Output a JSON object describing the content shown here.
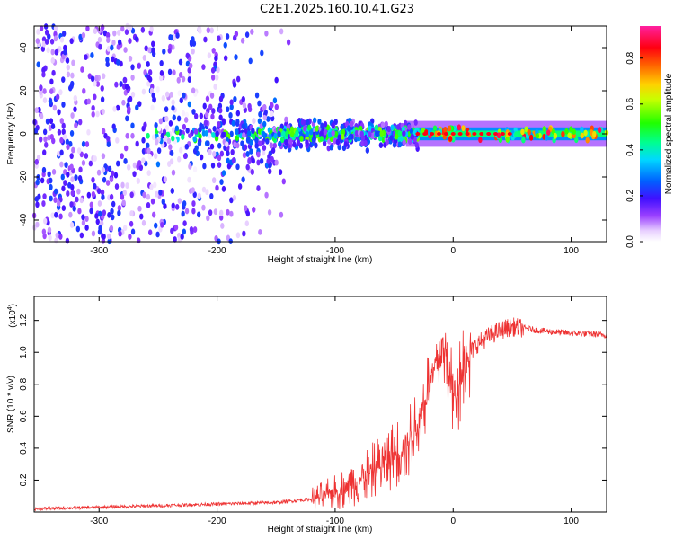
{
  "title": "C2E1.2025.160.10.41.G23",
  "chart_data": [
    {
      "type": "heatmap",
      "xlabel": "Height of straight line (km)",
      "ylabel": "Frequency (Hz)",
      "xlim": [
        -355,
        130
      ],
      "ylim": [
        -50,
        50
      ],
      "x_ticks": [
        "-300",
        "-200",
        "-100",
        "0",
        "100"
      ],
      "y_ticks": [
        "40",
        "20",
        "0",
        "-20",
        "-40"
      ],
      "colorbar": {
        "label": "Normalized spectral amplitude",
        "range": [
          0.0,
          0.94
        ],
        "ticks": [
          "0.0",
          "0.2",
          "0.4",
          "0.6",
          "0.8"
        ],
        "colormap": "rainbow (white, violet, blue, cyan, green, yellow, red, magenta)"
      },
      "features": [
        {
          "x_range": [
            -355,
            -170
          ],
          "freq_range": [
            -50,
            50
          ],
          "amplitude": "0.05-0.25",
          "pattern": "scattered broadband noise"
        },
        {
          "x_range": [
            -170,
            -30
          ],
          "freq_range": [
            -8,
            8
          ],
          "amplitude": "0.1-0.5",
          "pattern": "noisy band centered near 0 Hz"
        },
        {
          "x_range": [
            -30,
            130
          ],
          "freq_range": [
            -3,
            3
          ],
          "amplitude": "0.4-0.9",
          "pattern": "steady narrow line at 0 Hz"
        }
      ],
      "grid": false
    },
    {
      "type": "line",
      "xlabel": "Height of straight line (km)",
      "ylabel": "SNR (10 * v/v)",
      "y_multiplier": "(x10",
      "y_multiplier_exp": "4",
      "y_multiplier_close": ")",
      "xlim": [
        -355,
        130
      ],
      "ylim": [
        0,
        1.35
      ],
      "x_ticks": [
        "-300",
        "-200",
        "-100",
        "0",
        "100"
      ],
      "y_ticks": [
        "1.2",
        "1.0",
        "0.8",
        "0.6",
        "0.4",
        "0.2"
      ],
      "series": [
        {
          "color": "#ee3333",
          "x": [
            -355,
            -300,
            -250,
            -200,
            -150,
            -120,
            -100,
            -80,
            -60,
            -40,
            -30,
            -20,
            -10,
            -5,
            0,
            5,
            10,
            15,
            20,
            30,
            40,
            50,
            60,
            80,
            100,
            130
          ],
          "y": [
            0.02,
            0.03,
            0.04,
            0.05,
            0.06,
            0.08,
            0.12,
            0.2,
            0.3,
            0.42,
            0.55,
            0.8,
            1.0,
            0.95,
            0.7,
            0.85,
            0.95,
            1.0,
            1.05,
            1.1,
            1.14,
            1.16,
            1.15,
            1.13,
            1.12,
            1.11
          ]
        }
      ],
      "grid": false
    }
  ]
}
